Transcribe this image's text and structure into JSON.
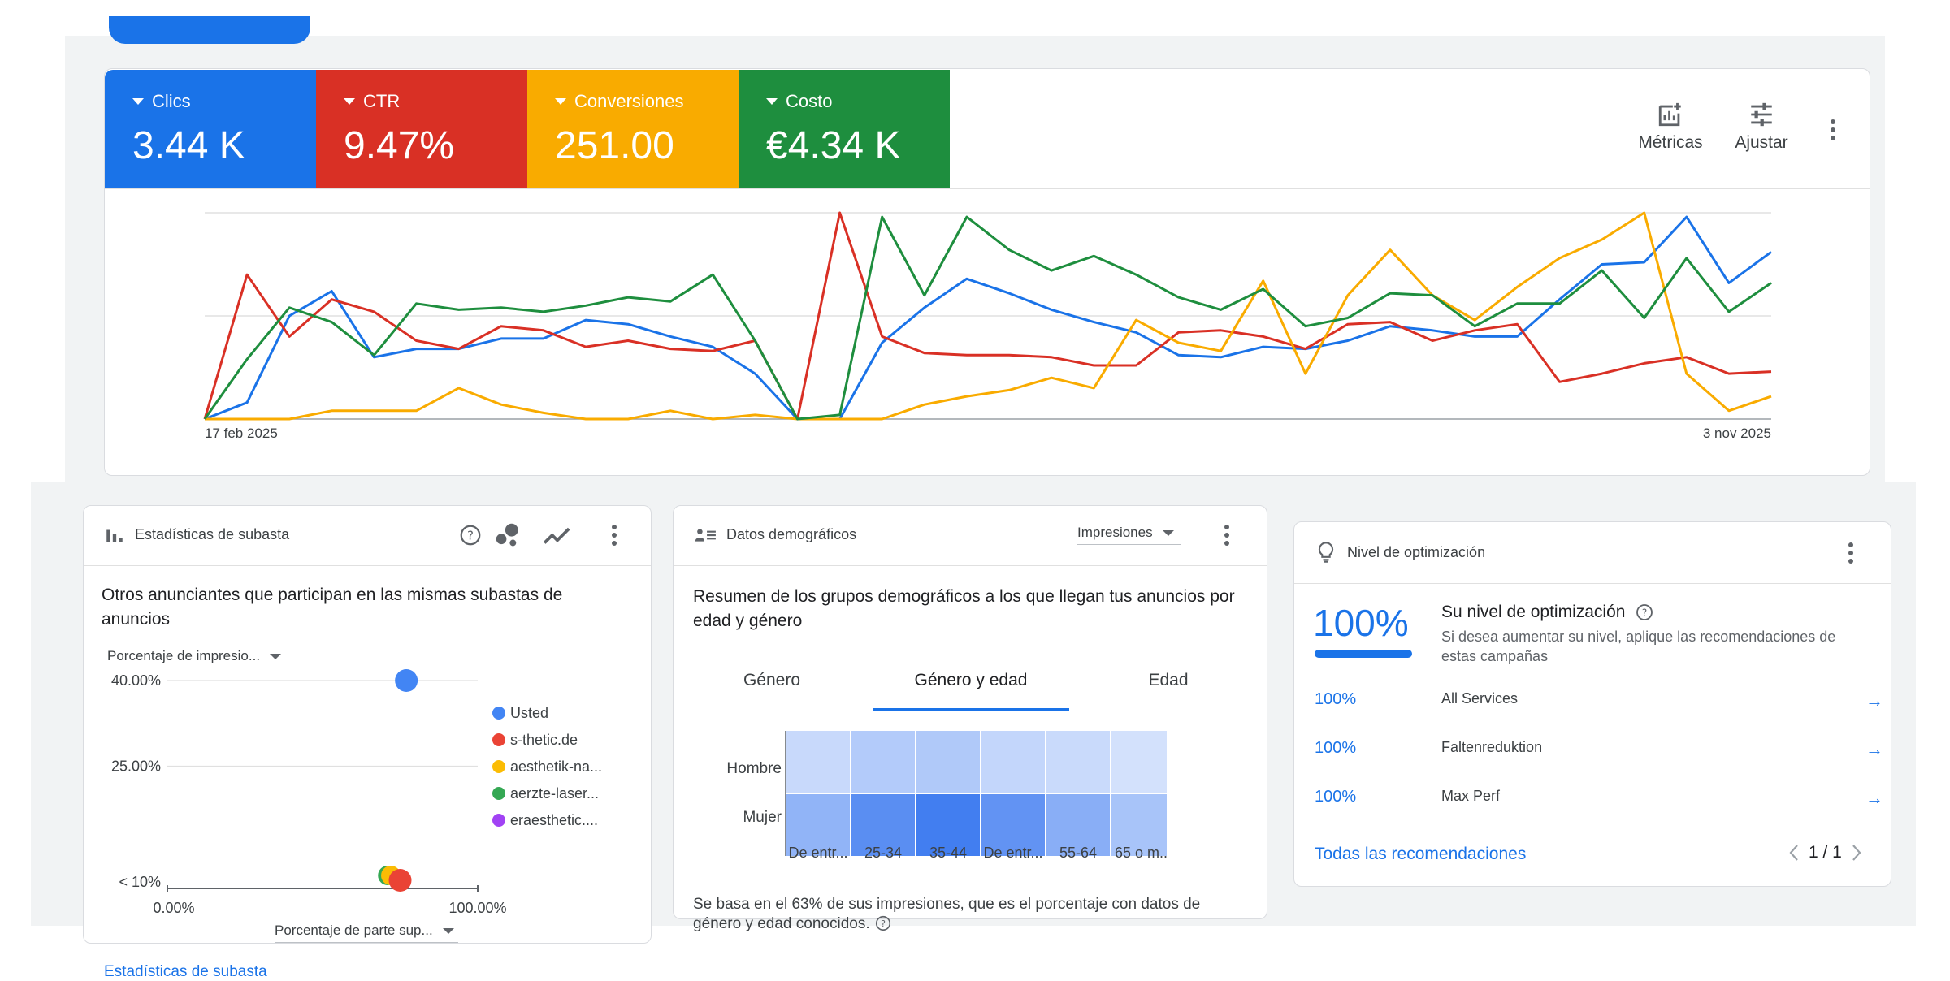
{
  "scorecards": {
    "metrics": [
      {
        "label": "Clics",
        "value": "3.44 K",
        "color": "#1a73e8"
      },
      {
        "label": "CTR",
        "value": "9.47%",
        "color": "#d93025"
      },
      {
        "label": "Conversiones",
        "value": "251.00",
        "color": "#f9ab00"
      },
      {
        "label": "Costo",
        "value": "€4.34 K",
        "color": "#1e8e3e"
      }
    ],
    "metrics_button": "Métricas",
    "adjust_button": "Ajustar"
  },
  "chart_data": [
    {
      "type": "line",
      "title": "",
      "xlabel": "",
      "ylabel": "",
      "x_start_label": "17 feb 2025",
      "x_end_label": "3 nov 2025",
      "grid": true,
      "series": [
        {
          "name": "Clics",
          "color": "#1a73e8",
          "values": [
            0,
            8,
            50,
            62,
            30,
            34,
            34,
            39,
            39,
            48,
            46,
            40,
            35,
            22,
            0,
            0,
            37,
            54,
            68,
            61,
            53,
            47,
            42,
            31,
            30,
            35,
            34,
            38,
            45,
            43,
            40,
            40,
            58,
            75,
            76,
            98,
            66,
            81
          ]
        },
        {
          "name": "CTR",
          "color": "#d93025",
          "values": [
            0,
            70,
            40,
            58,
            52,
            38,
            34,
            45,
            43,
            35,
            38,
            34,
            33,
            38,
            0,
            100,
            40,
            32,
            31,
            31,
            30,
            26,
            26,
            42,
            43,
            40,
            34,
            46,
            47,
            38,
            43,
            46,
            18,
            22,
            27,
            30,
            22,
            23
          ]
        },
        {
          "name": "Conversiones",
          "color": "#f9ab00",
          "values": [
            0,
            0,
            0,
            4,
            4,
            4,
            15,
            7,
            3,
            0,
            0,
            4,
            0,
            2,
            0,
            0,
            0,
            7,
            11,
            14,
            20,
            15,
            48,
            37,
            33,
            67,
            22,
            60,
            82,
            60,
            48,
            64,
            78,
            87,
            100,
            22,
            4,
            11
          ]
        },
        {
          "name": "Costo",
          "color": "#1e8e3e",
          "values": [
            0,
            29,
            54,
            47,
            31,
            56,
            53,
            54,
            52,
            55,
            59,
            57,
            70,
            38,
            0,
            2,
            98,
            60,
            98,
            82,
            72,
            79,
            70,
            59,
            53,
            63,
            45,
            49,
            61,
            60,
            45,
            56,
            56,
            72,
            49,
            78,
            52,
            66
          ]
        }
      ]
    },
    {
      "type": "scatter",
      "title": "",
      "xlabel": "Porcentaje de parte sup...",
      "ylabel": "Porcentaje de impresio...",
      "x_ticks": [
        "0.00%",
        "100.00%"
      ],
      "y_ticks": [
        "< 10%",
        "25.00%",
        "40.00%"
      ],
      "series": [
        {
          "name": "Usted",
          "color": "#4285f4",
          "points": [
            {
              "x": 77,
              "y": 40
            }
          ]
        },
        {
          "name": "s-thetic.de",
          "color": "#ea4335",
          "points": [
            {
              "x": 75,
              "y": 10
            }
          ]
        },
        {
          "name": "aesthetik-na...",
          "color": "#fbbc04",
          "points": [
            {
              "x": 72,
              "y": 9
            }
          ]
        },
        {
          "name": "aerzte-laser...",
          "color": "#34a853",
          "points": [
            {
              "x": 71,
              "y": 9
            }
          ]
        },
        {
          "name": "eraesthetic....",
          "color": "#a142f4",
          "points": []
        }
      ]
    },
    {
      "type": "heatmap",
      "title": "",
      "rows": [
        "Hombre",
        "Mujer"
      ],
      "columns": [
        "De entr...",
        "25-34",
        "35-44",
        "De entr...",
        "55-64",
        "65 o m..."
      ],
      "values": [
        [
          0.15,
          0.28,
          0.3,
          0.18,
          0.14,
          0.08
        ],
        [
          0.5,
          0.85,
          1.0,
          0.8,
          0.55,
          0.35
        ]
      ]
    }
  ],
  "auction": {
    "title": "Estadísticas de subasta",
    "heading": "Otros anunciantes que participan en las mismas subastas de anuncios",
    "y_dropdown": "Porcentaje de impresio...",
    "x_dropdown": "Porcentaje de parte sup...",
    "footer_link": "Estadísticas de subasta"
  },
  "demographics": {
    "title": "Datos demográficos",
    "dropdown": "Impresiones",
    "heading": "Resumen de los grupos demográficos a los que llegan tus anuncios por edad y género",
    "tabs": [
      "Género",
      "Género y edad",
      "Edad"
    ],
    "footnote": "Se basa en el 63% de sus impresiones, que es el porcentaje con datos de género y edad conocidos."
  },
  "optimization": {
    "title": "Nivel de optimización",
    "score": "100%",
    "score_fraction": 1.0,
    "heading": "Su nivel de optimización",
    "description": "Si desea aumentar su nivel, aplique las recomendaciones de estas campañas",
    "campaigns": [
      {
        "score": "100%",
        "name": "All Services"
      },
      {
        "score": "100%",
        "name": "Faltenreduktion"
      },
      {
        "score": "100%",
        "name": "Max Perf"
      }
    ],
    "all_link": "Todas las recomendaciones",
    "pager": "1 / 1"
  }
}
